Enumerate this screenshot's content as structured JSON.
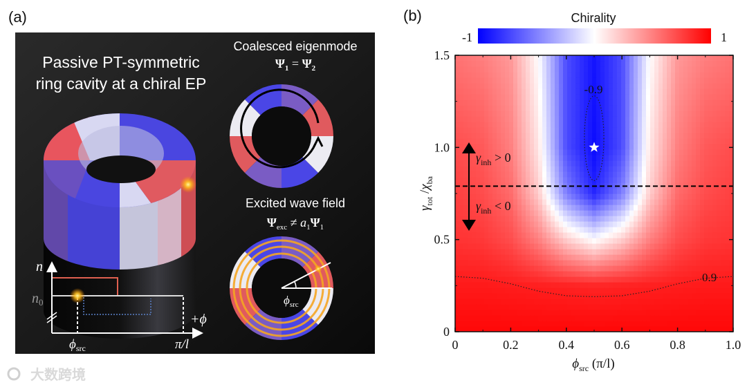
{
  "panel_a": {
    "label": "(a)",
    "title_line1": "Passive PT-symmetric",
    "title_line2": "ring cavity at a chiral EP",
    "eigenmode": {
      "title": "Coalesced eigenmode",
      "psi": "Ψ",
      "sub1": "1",
      "eq": " = ",
      "sub2": "2"
    },
    "wavefield": {
      "title": "Excited wave field",
      "psi": "Ψ",
      "sub_exc": "exc",
      "neq": " ≠ ",
      "a": "a",
      "sub_a": "1",
      "sub_1": "1"
    },
    "ring_colors": [
      "#e05a5e",
      "#7a5cc4",
      "#4a46e6",
      "#ecebf2",
      "#e05a5e",
      "#7a5cc4",
      "#4a46e6",
      "#ecebf2"
    ],
    "graph": {
      "n_label": "n",
      "n0_label": "n",
      "n0_sub": "0",
      "phi_axis": "+ϕ",
      "phi_src": "ϕ",
      "phi_src_sub": "src",
      "pi_over_l": "π/l"
    },
    "ring_angle_label": "ϕ",
    "ring_angle_sub": "src"
  },
  "panel_b": {
    "label": "(b)",
    "colorbar": {
      "title": "Chirality",
      "min_label": "-1",
      "max_label": "1"
    },
    "arrow_up": {
      "symbol": "γ",
      "sub": "inh",
      "rel": " > 0"
    },
    "arrow_down": {
      "symbol": "γ",
      "sub": "inh",
      "rel": " < 0"
    }
  },
  "chart_data": {
    "type": "heatmap",
    "title": "Chirality",
    "xlabel": {
      "symbol": "ϕ",
      "sub": "src",
      "unit": " (π/l)"
    },
    "ylabel": {
      "num": "γ",
      "num_sub": "tot",
      "slash": " /",
      "den": "χ",
      "den_sub": "ba"
    },
    "xlim": [
      0,
      1.0
    ],
    "ylim": [
      0,
      1.5
    ],
    "zlim": [
      -1,
      1
    ],
    "x_ticks": [
      "0",
      "0.2",
      "0.4",
      "0.6",
      "0.8",
      "1.0"
    ],
    "y_ticks": [
      "0",
      "0.5",
      "1.0",
      "1.5"
    ],
    "colormap": {
      "low": "#0000ff",
      "mid": "#ffffff",
      "high": "#ff0000"
    },
    "grid_x": [
      0,
      0.1,
      0.2,
      0.3,
      0.4,
      0.5,
      0.6,
      0.7,
      0.8,
      0.9,
      1.0
    ],
    "grid_y": [
      0,
      0.25,
      0.5,
      0.75,
      1.0,
      1.25,
      1.5
    ],
    "z": [
      [
        0.97,
        0.97,
        0.97,
        0.97,
        0.97,
        0.97,
        0.97,
        0.97,
        0.97,
        0.97,
        0.97
      ],
      [
        0.9,
        0.9,
        0.89,
        0.88,
        0.87,
        0.86,
        0.87,
        0.88,
        0.89,
        0.9,
        0.9
      ],
      [
        0.8,
        0.78,
        0.7,
        0.5,
        0.2,
        0.0,
        0.2,
        0.5,
        0.7,
        0.78,
        0.8
      ],
      [
        0.75,
        0.7,
        0.58,
        0.2,
        -0.5,
        -0.85,
        -0.5,
        0.2,
        0.58,
        0.7,
        0.75
      ],
      [
        0.7,
        0.65,
        0.5,
        0.1,
        -0.7,
        -0.95,
        -0.7,
        0.1,
        0.5,
        0.65,
        0.7
      ],
      [
        0.62,
        0.58,
        0.45,
        0.05,
        -0.7,
        -0.93,
        -0.7,
        0.05,
        0.45,
        0.58,
        0.62
      ],
      [
        0.55,
        0.5,
        0.4,
        0.0,
        -0.7,
        -0.92,
        -0.7,
        0.0,
        0.4,
        0.5,
        0.55
      ]
    ],
    "contours": [
      {
        "level": "-0.9",
        "label": "-0.9",
        "shape": "ellipse",
        "center": [
          0.5,
          1.05
        ],
        "semi_axes": [
          0.035,
          0.23
        ]
      },
      {
        "level": "0.9",
        "label": "0.9",
        "points": [
          [
            0,
            0.3
          ],
          [
            0.1,
            0.29
          ],
          [
            0.2,
            0.26
          ],
          [
            0.3,
            0.22
          ],
          [
            0.4,
            0.195
          ],
          [
            0.5,
            0.19
          ],
          [
            0.6,
            0.195
          ],
          [
            0.7,
            0.22
          ],
          [
            0.8,
            0.26
          ],
          [
            0.9,
            0.29
          ],
          [
            1.0,
            0.3
          ]
        ]
      }
    ],
    "star": [
      0.5,
      1.0
    ],
    "dashed_line_y": 0.79
  },
  "watermark": "大数跨境"
}
